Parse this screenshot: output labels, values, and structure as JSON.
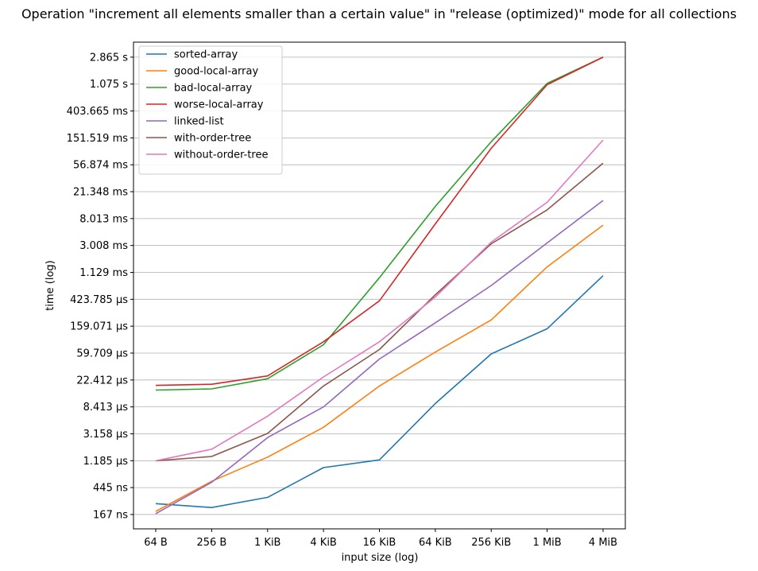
{
  "chart_data": {
    "type": "line",
    "title": "Operation \"increment all elements smaller than a certain value\" in \"release (optimized)\" mode for all collections",
    "xlabel": "input size (log)",
    "ylabel": "time (log)",
    "x_scale": "log",
    "y_scale": "log",
    "grid": "horizontal",
    "legend_position": "top-left",
    "categories": [
      "64 B",
      "256 B",
      "1 KiB",
      "4 KiB",
      "16 KiB",
      "64 KiB",
      "256 KiB",
      "1 MiB",
      "4 MiB"
    ],
    "y_ticks": [
      {
        "label": "167 ns",
        "value": 1.67e-07
      },
      {
        "label": "445 ns",
        "value": 4.45e-07
      },
      {
        "label": "1.185 µs",
        "value": 1.185e-06
      },
      {
        "label": "3.158 µs",
        "value": 3.158e-06
      },
      {
        "label": "8.413 µs",
        "value": 8.413e-06
      },
      {
        "label": "22.412 µs",
        "value": 2.2412e-05
      },
      {
        "label": "59.709 µs",
        "value": 5.9709e-05
      },
      {
        "label": "159.071 µs",
        "value": 0.000159071
      },
      {
        "label": "423.785 µs",
        "value": 0.000423785
      },
      {
        "label": "1.129 ms",
        "value": 0.001129
      },
      {
        "label": "3.008 ms",
        "value": 0.003008
      },
      {
        "label": "8.013 ms",
        "value": 0.008013
      },
      {
        "label": "21.348 ms",
        "value": 0.021348
      },
      {
        "label": "56.874 ms",
        "value": 0.056874
      },
      {
        "label": "151.519 ms",
        "value": 0.151519
      },
      {
        "label": "403.665 ms",
        "value": 0.403665
      },
      {
        "label": "1.075 s",
        "value": 1.075
      },
      {
        "label": "2.865 s",
        "value": 2.865
      }
    ],
    "ylim": [
      9.9e-08,
      4.95
    ],
    "series": [
      {
        "name": "sorted-array",
        "color": "#1f77b4",
        "values": [
          2.48e-07,
          2.15e-07,
          3.12e-07,
          9.2e-07,
          1.22e-06,
          9.5e-06,
          5.8e-05,
          0.000145,
          0.001
        ]
      },
      {
        "name": "good-local-array",
        "color": "#ff7f0e",
        "values": [
          1.87e-07,
          5.6e-07,
          1.35e-06,
          4e-06,
          1.8e-05,
          6.2e-05,
          0.0002,
          0.00138,
          0.0063
        ]
      },
      {
        "name": "bad-local-array",
        "color": "#2ca02c",
        "values": [
          1.55e-05,
          1.62e-05,
          2.35e-05,
          8.1e-05,
          0.00093,
          0.0125,
          0.132,
          1.1,
          2.865
        ]
      },
      {
        "name": "worse-local-array",
        "color": "#d62728",
        "values": [
          1.84e-05,
          1.92e-05,
          2.6e-05,
          9e-05,
          0.0004,
          0.0066,
          0.104,
          1.05,
          2.865
        ]
      },
      {
        "name": "linked-list",
        "color": "#9467bd",
        "values": [
          1.72e-07,
          5.4e-07,
          2.75e-06,
          8.4e-06,
          4.8e-05,
          0.00018,
          0.0007,
          0.0033,
          0.0155
        ]
      },
      {
        "name": "with-order-tree",
        "color": "#8c564b",
        "values": [
          1.18e-06,
          1.38e-06,
          3.2e-06,
          1.8e-05,
          6.8e-05,
          0.0005,
          0.0032,
          0.011,
          0.06
        ]
      },
      {
        "name": "without-order-tree",
        "color": "#e377c2",
        "values": [
          1.18e-06,
          1.8e-06,
          6e-06,
          2.5e-05,
          9e-05,
          0.00046,
          0.0034,
          0.0145,
          0.14
        ]
      }
    ]
  }
}
